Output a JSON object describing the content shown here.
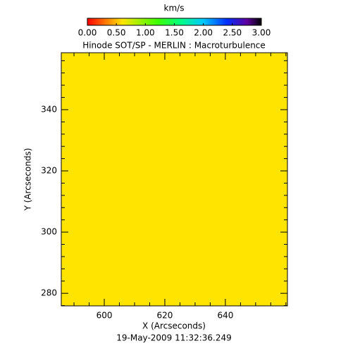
{
  "chart_data": {
    "type": "heatmap",
    "title": "Hinode SOT/SP - MERLIN : Macroturbulence",
    "subtitle": "19-May-2009 11:32:36.249",
    "xlabel": "X (Arcseconds)",
    "ylabel": "Y (Arcseconds)",
    "values": [
      [
        0.6
      ]
    ],
    "xlim": [
      585.8,
      660.5
    ],
    "ylim": [
      275.9,
      358.6
    ],
    "xticks": [
      600,
      620,
      640
    ],
    "yticks": [
      280,
      300,
      320,
      340
    ],
    "xminorticks": [
      590,
      595,
      605,
      610,
      615,
      625,
      630,
      635,
      645,
      650,
      655,
      660
    ],
    "yminorticks": [
      276,
      284,
      288,
      292,
      296,
      304,
      308,
      312,
      316,
      324,
      328,
      332,
      336,
      344,
      348,
      352,
      356
    ],
    "colorbar": {
      "label": "km/s",
      "lim": [
        0,
        3
      ],
      "ticks": [
        {
          "value": 0,
          "label": "0.00"
        },
        {
          "value": 0.5,
          "label": "0.50"
        },
        {
          "value": 1,
          "label": "1.00"
        },
        {
          "value": 1.5,
          "label": "1.50"
        },
        {
          "value": 2,
          "label": "2.00"
        },
        {
          "value": 2.5,
          "label": "2.50"
        },
        {
          "value": 3,
          "label": "3.00"
        }
      ],
      "colorscale": [
        [
          0,
          "#ff0000"
        ],
        [
          0.6,
          "#ffe400"
        ],
        [
          1.2,
          "#40ff00"
        ],
        [
          1.6,
          "#00ff80"
        ],
        [
          2.0,
          "#00c8ff"
        ],
        [
          2.4,
          "#0030ff"
        ],
        [
          2.75,
          "#6000a0"
        ],
        [
          3.0,
          "#000000"
        ]
      ]
    }
  }
}
